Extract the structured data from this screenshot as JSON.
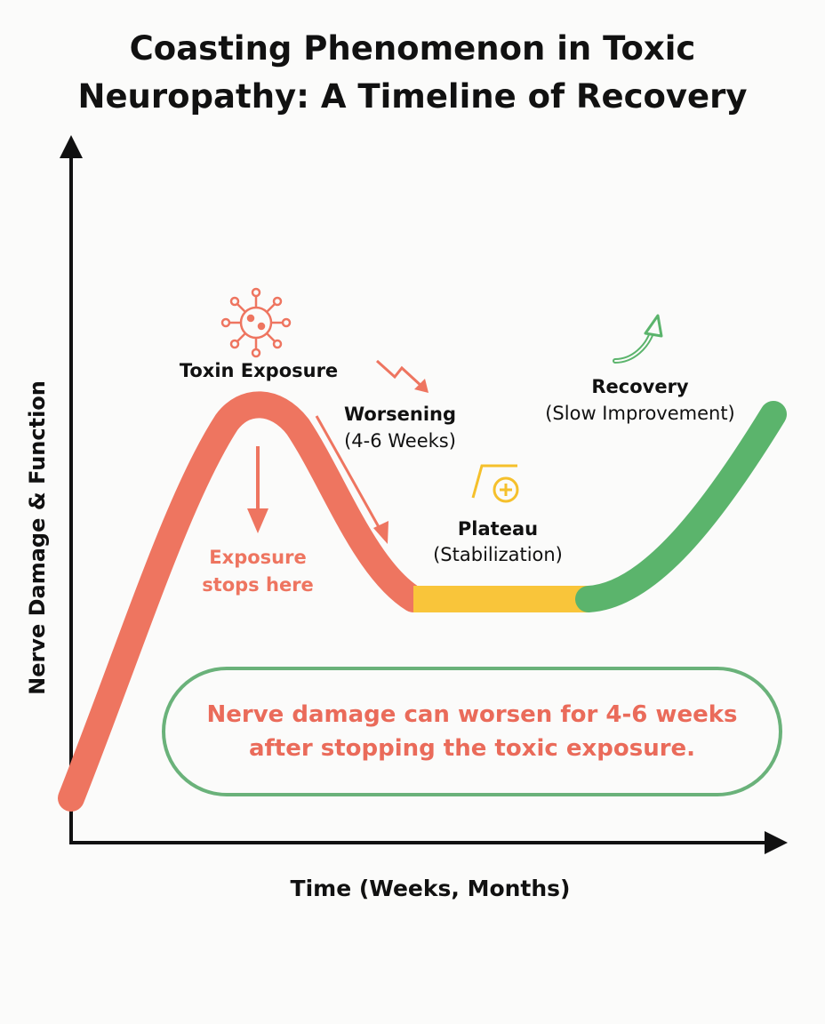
{
  "title": {
    "line1": "Coasting Phenomenon in Toxic",
    "line2": "Neuropathy: A Timeline of Recovery"
  },
  "axes": {
    "y_label": "Nerve Damage & Function",
    "x_label": "Time (Weeks, Months)"
  },
  "phases": {
    "toxin": {
      "title": "Toxin Exposure",
      "icon": "virus-icon"
    },
    "stop": {
      "line1": "Exposure",
      "line2": "stops here"
    },
    "worsening": {
      "title": "Worsening",
      "subtitle": "(4-6 Weeks)",
      "icon": "zigzag-down-arrow-icon"
    },
    "plateau": {
      "title": "Plateau",
      "subtitle": "(Stabilization)",
      "icon": "plateau-plus-icon"
    },
    "recovery": {
      "title": "Recovery",
      "subtitle": "(Slow Improvement)",
      "icon": "curved-up-arrow-icon"
    }
  },
  "callout": {
    "line1": "Nerve damage can worsen for 4-6 weeks",
    "line2": "after stopping the toxic exposure."
  },
  "colors": {
    "toxic_red": "#ee7560",
    "plateau_yellow": "#f9c53a",
    "recovery_green": "#5bb46c",
    "axis": "#111111",
    "callout_border": "#6ab27a"
  }
}
